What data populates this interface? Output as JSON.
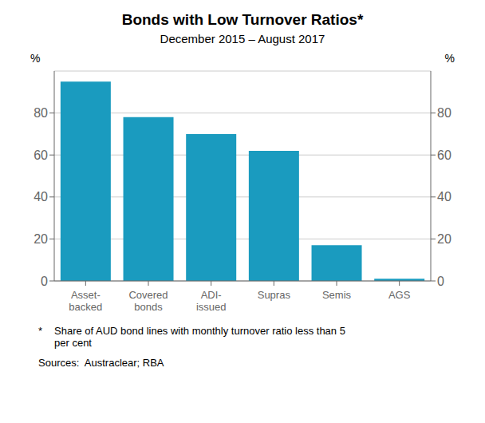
{
  "chart_data": {
    "type": "bar",
    "title": "Bonds with Low Turnover Ratios*",
    "subtitle": "December 2015 – August 2017",
    "categories": [
      "Asset-\nbacked",
      "Covered\nbonds",
      "ADI-\nissued",
      "Supras",
      "Semis",
      "AGS"
    ],
    "values": [
      95,
      78,
      70,
      62,
      17,
      1
    ],
    "color": "#1a9bbf",
    "ylim": [
      0,
      100
    ],
    "yticks": [
      0,
      20,
      40,
      60,
      80
    ],
    "y2lim": [
      0,
      100
    ],
    "y2ticks": [
      0,
      20,
      40,
      60,
      80
    ],
    "ylabel": "%",
    "y2label": "%",
    "grid": true,
    "annotations": [
      "*",
      "Share of AUD bond lines with monthly turnover ratio less than 5\nper cent",
      "Sources:  Austraclear; RBA"
    ]
  }
}
